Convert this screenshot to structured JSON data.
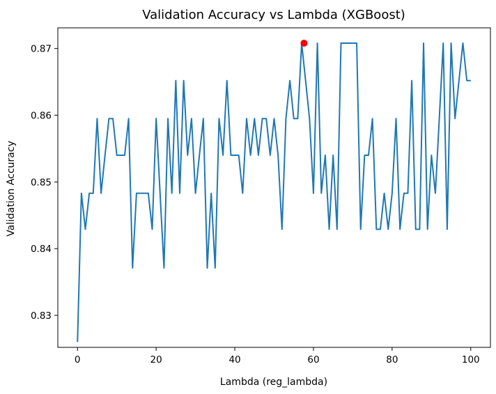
{
  "chart_data": {
    "type": "line",
    "title": "Validation Accuracy vs Lambda (XGBoost)",
    "xlabel": "Lambda (reg_lambda)",
    "ylabel": "Validation Accuracy",
    "xlim": [
      -5,
      105
    ],
    "ylim": [
      0.8252,
      0.8731
    ],
    "xticks": [
      0,
      20,
      40,
      60,
      80,
      100
    ],
    "yticks": [
      0.83,
      0.84,
      0.85,
      0.86,
      0.87
    ],
    "ytick_labels": [
      "0.83",
      "0.84",
      "0.85",
      "0.86",
      "0.87"
    ],
    "grid": false,
    "line_color": "#1f77b4",
    "marker_color": "#ff0000",
    "best_point": {
      "x": 57.6,
      "y": 0.8708
    },
    "series": [
      {
        "x": [
          0,
          1,
          2,
          3,
          4,
          5,
          6,
          7,
          8,
          9,
          10,
          11,
          12,
          13,
          14,
          15,
          16,
          17,
          18,
          19,
          20,
          21,
          22,
          23,
          24,
          25,
          26,
          27,
          28,
          29,
          30,
          31,
          32,
          33,
          34,
          35,
          36,
          37,
          38,
          39,
          40,
          41,
          42,
          43,
          44,
          45,
          46,
          47,
          48,
          49,
          50,
          51,
          52,
          53,
          54,
          55,
          56,
          57,
          58,
          59,
          60,
          61,
          62,
          63,
          64,
          65,
          66,
          67,
          68,
          69,
          70,
          71,
          72,
          73,
          74,
          75,
          76,
          77,
          78,
          79,
          80,
          81,
          82,
          83,
          84,
          85,
          86,
          87,
          88,
          89,
          90,
          91,
          92,
          93,
          94,
          95,
          96,
          97,
          98,
          99,
          100
        ],
        "values": [
          0.826,
          0.8483,
          0.8429,
          0.8483,
          0.8483,
          0.8595,
          0.8483,
          0.854,
          0.8595,
          0.8595,
          0.854,
          0.854,
          0.854,
          0.8595,
          0.8371,
          0.8483,
          0.8483,
          0.8483,
          0.8483,
          0.8429,
          0.8595,
          0.8483,
          0.8371,
          0.8595,
          0.8483,
          0.8652,
          0.8483,
          0.8652,
          0.854,
          0.8595,
          0.8483,
          0.854,
          0.8595,
          0.8371,
          0.8483,
          0.8371,
          0.8595,
          0.854,
          0.8652,
          0.854,
          0.854,
          0.854,
          0.8483,
          0.8595,
          0.854,
          0.8595,
          0.854,
          0.8595,
          0.8595,
          0.854,
          0.8595,
          0.854,
          0.8429,
          0.8595,
          0.8652,
          0.8595,
          0.8595,
          0.8708,
          0.8652,
          0.8595,
          0.8483,
          0.8708,
          0.8483,
          0.854,
          0.8429,
          0.854,
          0.8429,
          0.8708,
          0.8708,
          0.8708,
          0.8708,
          0.8708,
          0.8429,
          0.854,
          0.854,
          0.8595,
          0.8429,
          0.8429,
          0.8483,
          0.8429,
          0.8483,
          0.8595,
          0.8429,
          0.8483,
          0.8483,
          0.8652,
          0.8429,
          0.8429,
          0.8708,
          0.8429,
          0.854,
          0.8483,
          0.8595,
          0.8708,
          0.8429,
          0.8708,
          0.8595,
          0.8652,
          0.8708,
          0.8652,
          0.8652
        ]
      }
    ]
  }
}
